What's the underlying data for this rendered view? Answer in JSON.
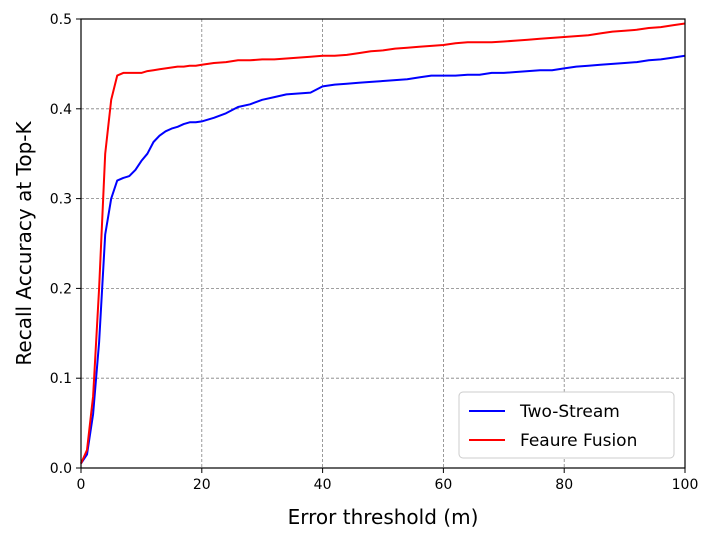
{
  "chart_data": {
    "type": "line",
    "title": "",
    "xlabel": "Error threshold (m)",
    "ylabel": "Recall Accuracy at Top-K",
    "xlim": [
      0,
      100
    ],
    "ylim": [
      0,
      0.5
    ],
    "xticks": [
      "0",
      "20",
      "40",
      "60",
      "80",
      "100"
    ],
    "yticks": [
      "0.0",
      "0.1",
      "0.2",
      "0.3",
      "0.4",
      "0.5"
    ],
    "grid": true,
    "legend_position": "lower-right",
    "series": [
      {
        "name": "Two-Stream",
        "color": "#0000ff",
        "x": [
          0,
          1,
          2,
          3,
          4,
          5,
          6,
          7,
          8,
          9,
          10,
          11,
          12,
          13,
          14,
          15,
          16,
          17,
          18,
          19,
          20,
          22,
          24,
          26,
          28,
          30,
          32,
          34,
          36,
          38,
          40,
          42,
          44,
          46,
          48,
          50,
          52,
          54,
          56,
          58,
          60,
          62,
          64,
          66,
          68,
          70,
          72,
          74,
          76,
          78,
          80,
          82,
          84,
          86,
          88,
          90,
          92,
          94,
          96,
          98,
          100
        ],
        "y": [
          0.005,
          0.015,
          0.06,
          0.14,
          0.26,
          0.3,
          0.32,
          0.323,
          0.325,
          0.332,
          0.342,
          0.35,
          0.363,
          0.37,
          0.375,
          0.378,
          0.38,
          0.383,
          0.385,
          0.385,
          0.386,
          0.39,
          0.395,
          0.402,
          0.405,
          0.41,
          0.413,
          0.416,
          0.417,
          0.418,
          0.425,
          0.427,
          0.428,
          0.429,
          0.43,
          0.431,
          0.432,
          0.433,
          0.435,
          0.437,
          0.437,
          0.437,
          0.438,
          0.438,
          0.44,
          0.44,
          0.441,
          0.442,
          0.443,
          0.443,
          0.445,
          0.447,
          0.448,
          0.449,
          0.45,
          0.451,
          0.452,
          0.454,
          0.455,
          0.457,
          0.459
        ]
      },
      {
        "name": "Feaure Fusion",
        "color": "#ff0000",
        "x": [
          0,
          1,
          2,
          3,
          4,
          5,
          6,
          7,
          8,
          9,
          10,
          11,
          12,
          13,
          14,
          15,
          16,
          17,
          18,
          19,
          20,
          22,
          24,
          26,
          28,
          30,
          32,
          34,
          36,
          38,
          40,
          42,
          44,
          46,
          48,
          50,
          52,
          54,
          56,
          58,
          60,
          62,
          64,
          66,
          68,
          70,
          72,
          74,
          76,
          78,
          80,
          82,
          84,
          86,
          88,
          90,
          92,
          94,
          96,
          98,
          100
        ],
        "y": [
          0.005,
          0.02,
          0.08,
          0.2,
          0.35,
          0.41,
          0.437,
          0.44,
          0.44,
          0.44,
          0.44,
          0.442,
          0.443,
          0.444,
          0.445,
          0.446,
          0.447,
          0.447,
          0.448,
          0.448,
          0.449,
          0.451,
          0.452,
          0.454,
          0.454,
          0.455,
          0.455,
          0.456,
          0.457,
          0.458,
          0.459,
          0.459,
          0.46,
          0.462,
          0.464,
          0.465,
          0.467,
          0.468,
          0.469,
          0.47,
          0.471,
          0.473,
          0.474,
          0.474,
          0.474,
          0.475,
          0.476,
          0.477,
          0.478,
          0.479,
          0.48,
          0.481,
          0.482,
          0.484,
          0.486,
          0.487,
          0.488,
          0.49,
          0.491,
          0.493,
          0.495
        ]
      }
    ]
  }
}
